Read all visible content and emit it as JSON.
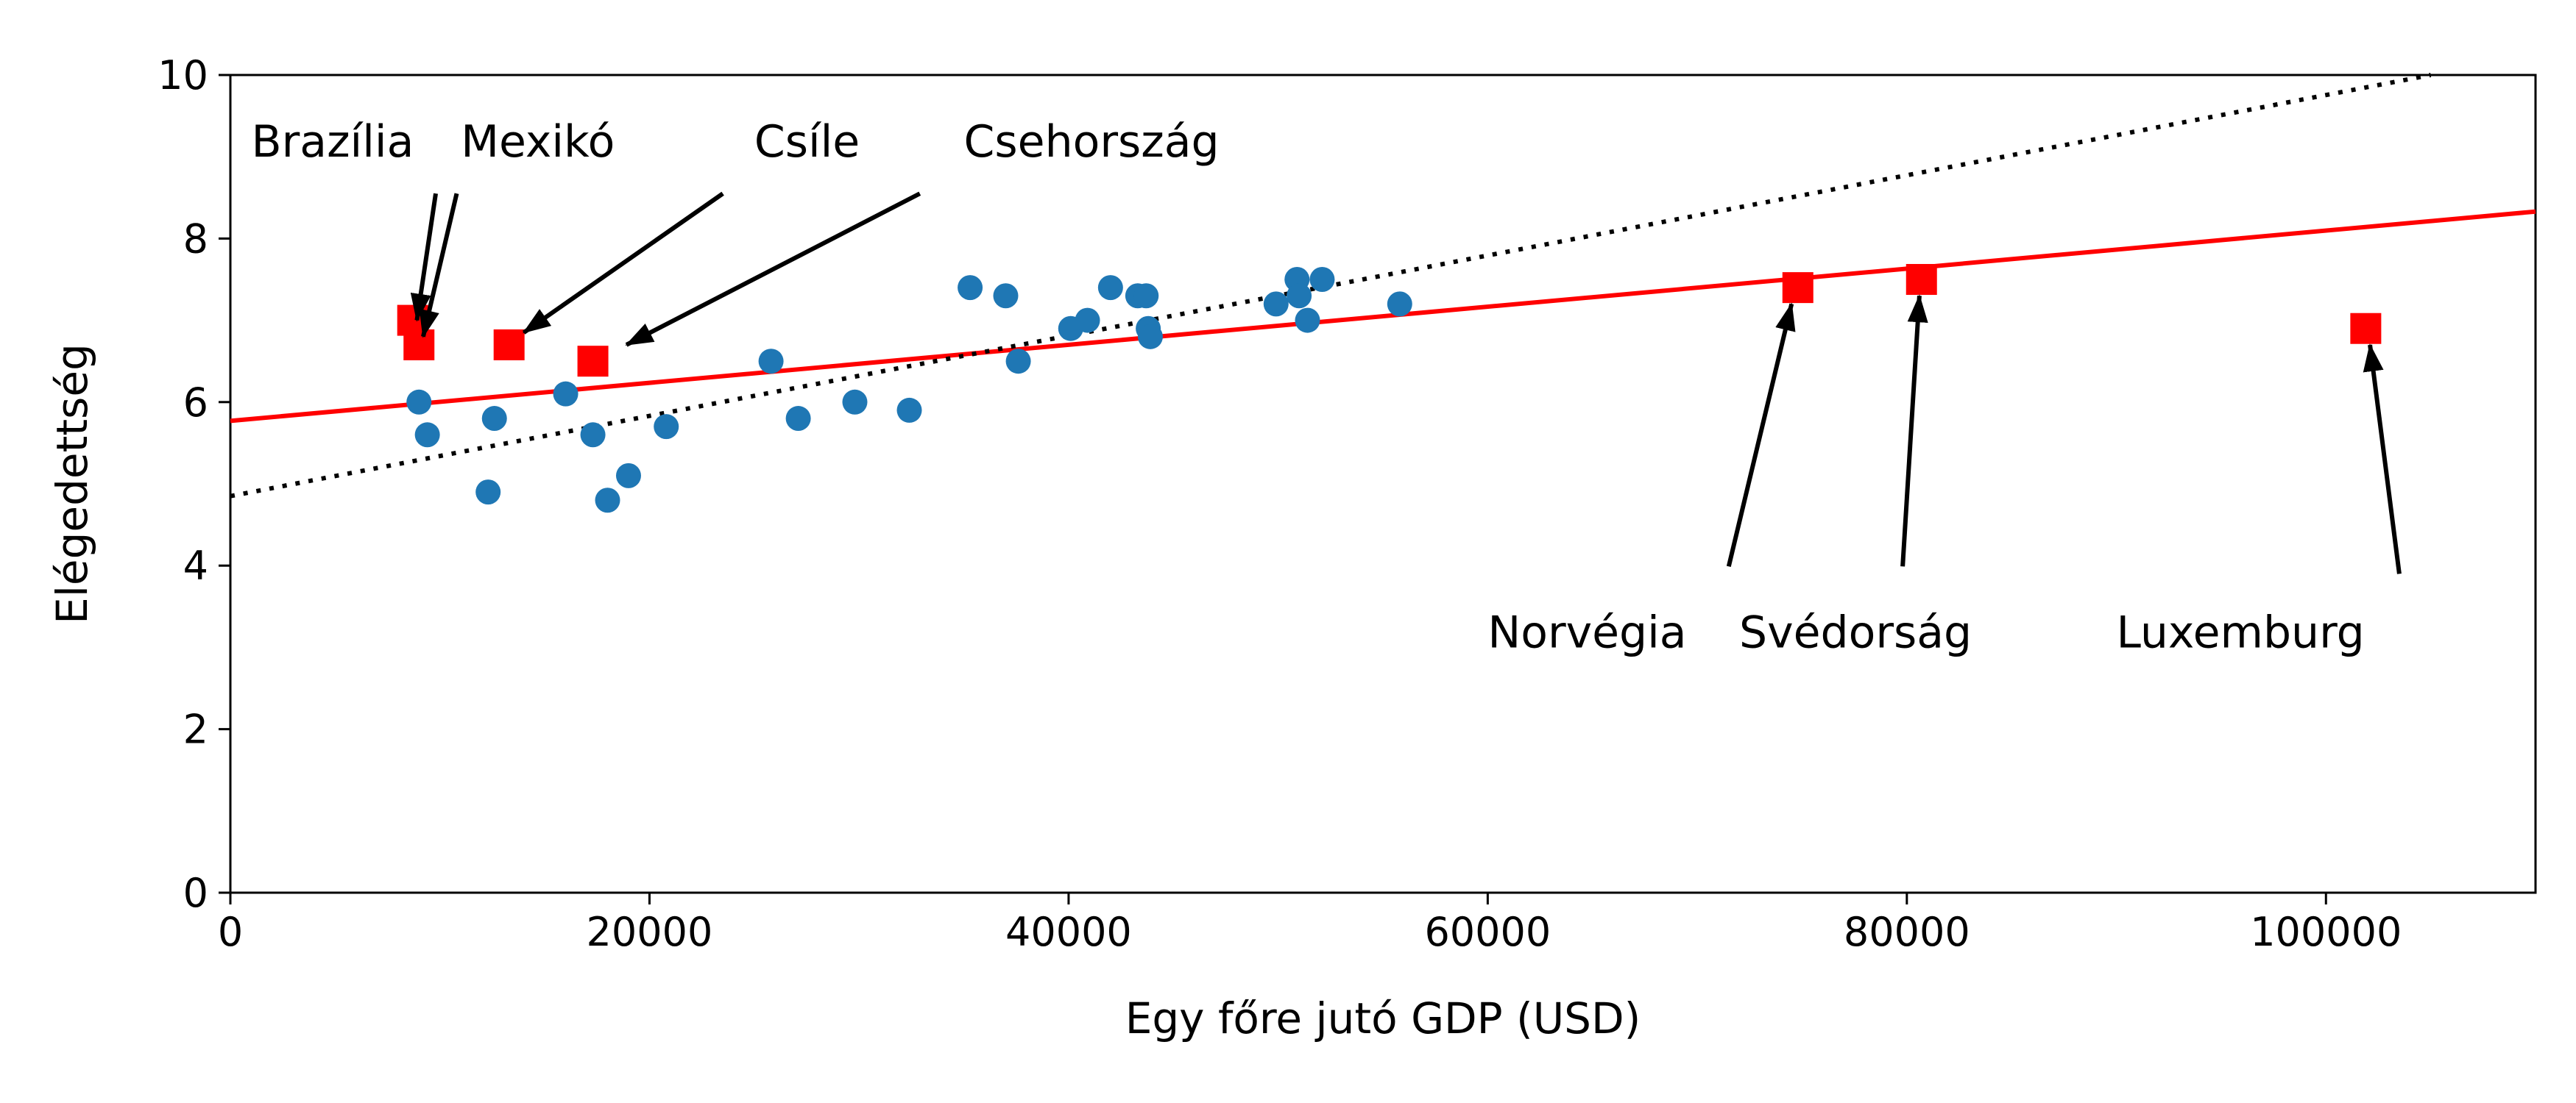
{
  "chart_data": {
    "type": "scatter",
    "title": "",
    "xlabel": "Egy főre jutó GDP (USD)",
    "ylabel": "Elégedettség",
    "xlim": [
      0,
      110000
    ],
    "ylim": [
      0,
      10
    ],
    "xticks": [
      0,
      20000,
      40000,
      60000,
      80000,
      100000
    ],
    "xtick_labels": [
      "0",
      "20000",
      "40000",
      "60000",
      "80000",
      "100000"
    ],
    "yticks": [
      0,
      2,
      4,
      6,
      8,
      10
    ],
    "ytick_labels": [
      "0",
      "2",
      "4",
      "6",
      "8",
      "10"
    ],
    "grid": false,
    "colors": {
      "points": "#1f77b4",
      "highlight": "#ff0000",
      "fit_line": "#ff0000",
      "dotted_line": "#000000"
    },
    "series": [
      {
        "marker": "circle",
        "color": "#1f77b4",
        "points": [
          {
            "x": 9000,
            "y": 6.0
          },
          {
            "x": 9400,
            "y": 5.6
          },
          {
            "x": 12300,
            "y": 4.9
          },
          {
            "x": 12600,
            "y": 5.8
          },
          {
            "x": 16000,
            "y": 6.1
          },
          {
            "x": 17300,
            "y": 5.6
          },
          {
            "x": 18000,
            "y": 4.8
          },
          {
            "x": 19000,
            "y": 5.1
          },
          {
            "x": 20800,
            "y": 5.7
          },
          {
            "x": 25800,
            "y": 6.5
          },
          {
            "x": 27100,
            "y": 5.8
          },
          {
            "x": 29800,
            "y": 6.0
          },
          {
            "x": 32400,
            "y": 5.9
          },
          {
            "x": 35300,
            "y": 7.4
          },
          {
            "x": 37000,
            "y": 7.3
          },
          {
            "x": 37600,
            "y": 6.5
          },
          {
            "x": 40100,
            "y": 6.9
          },
          {
            "x": 40900,
            "y": 7.0
          },
          {
            "x": 42000,
            "y": 7.4
          },
          {
            "x": 43300,
            "y": 7.3
          },
          {
            "x": 43700,
            "y": 7.3
          },
          {
            "x": 43800,
            "y": 6.9
          },
          {
            "x": 43900,
            "y": 6.8
          },
          {
            "x": 49900,
            "y": 7.2
          },
          {
            "x": 50900,
            "y": 7.5
          },
          {
            "x": 51000,
            "y": 7.3
          },
          {
            "x": 51400,
            "y": 7.0
          },
          {
            "x": 52100,
            "y": 7.5
          },
          {
            "x": 55800,
            "y": 7.2
          }
        ]
      },
      {
        "marker": "square",
        "color": "#ff0000",
        "points": [
          {
            "x": 8700,
            "y": 7.0
          },
          {
            "x": 9000,
            "y": 6.7
          },
          {
            "x": 13300,
            "y": 6.7
          },
          {
            "x": 17300,
            "y": 6.5
          },
          {
            "x": 74800,
            "y": 7.4
          },
          {
            "x": 80700,
            "y": 7.5
          },
          {
            "x": 101900,
            "y": 6.9
          }
        ]
      }
    ],
    "lines": [
      {
        "style": "solid",
        "color": "#ff0000",
        "x": [
          0,
          110000
        ],
        "y": [
          5.77,
          8.33
        ]
      },
      {
        "style": "dotted",
        "color": "#000000",
        "x": [
          0,
          105000
        ],
        "y": [
          4.85,
          10.0
        ]
      }
    ],
    "annotations": [
      {
        "text": "Brazília",
        "text_x": 1000,
        "text_y": 9.0,
        "arrow_from": [
          9800,
          8.55
        ],
        "arrow_to": [
          8900,
          7.0
        ]
      },
      {
        "text": "Mexikó",
        "text_x": 11000,
        "text_y": 9.0,
        "arrow_from": [
          10800,
          8.55
        ],
        "arrow_to": [
          9200,
          6.8
        ]
      },
      {
        "text": "Csíle",
        "text_x": 25000,
        "text_y": 9.0,
        "arrow_from": [
          23500,
          8.55
        ],
        "arrow_to": [
          14000,
          6.85
        ]
      },
      {
        "text": "Csehország",
        "text_x": 35000,
        "text_y": 9.0,
        "arrow_from": [
          32900,
          8.55
        ],
        "arrow_to": [
          18900,
          6.7
        ]
      },
      {
        "text": "Norvégia",
        "text_x": 60000,
        "text_y": 3.0,
        "arrow_from": [
          71500,
          3.99
        ],
        "arrow_to": [
          74500,
          7.2
        ]
      },
      {
        "text": "Svédorság",
        "text_x": 72000,
        "text_y": 3.0,
        "arrow_from": [
          79800,
          3.99
        ],
        "arrow_to": [
          80600,
          7.3
        ]
      },
      {
        "text": "Luxemburg",
        "text_x": 90000,
        "text_y": 3.0,
        "arrow_from": [
          103500,
          3.9
        ],
        "arrow_to": [
          102100,
          6.7
        ]
      }
    ]
  }
}
